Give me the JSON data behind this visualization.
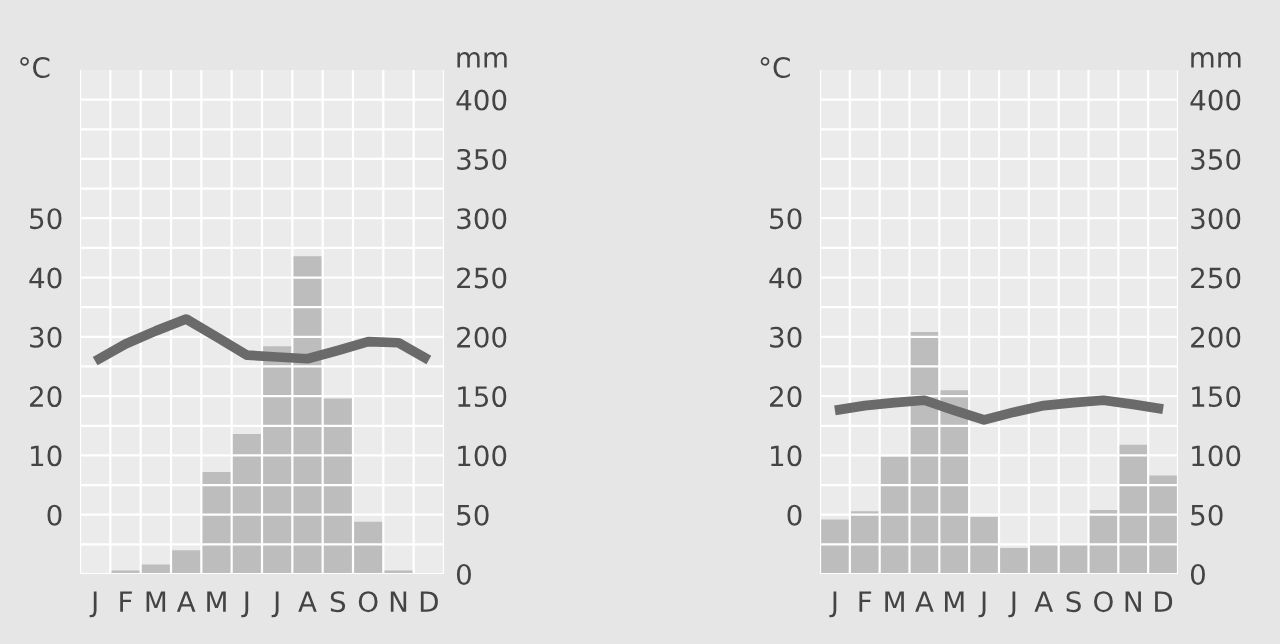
{
  "chart_data": [
    {
      "type": "bar",
      "ylabel": "°C",
      "y2label": "mm",
      "categories": [
        "J",
        "F",
        "M",
        "A",
        "M",
        "J",
        "J",
        "A",
        "S",
        "O",
        "N",
        "D"
      ],
      "grid": true,
      "series": [
        {
          "axis": "y2",
          "color": "#bdbdbd",
          "values": [
            0,
            3,
            8,
            20,
            86,
            118,
            192,
            268,
            148,
            44,
            3,
            0
          ]
        },
        {
          "type": "line",
          "axis": "y",
          "color": "#6a6a6a",
          "values": [
            25.9,
            28.8,
            31,
            33,
            30,
            26.9,
            26.6,
            26.3,
            27.7,
            29.2,
            29,
            26.1
          ]
        }
      ],
      "ylim": [
        -10,
        75
      ],
      "yticks": [
        0,
        10,
        20,
        30,
        40,
        50
      ],
      "y2lim": [
        0,
        425
      ],
      "y2ticks": [
        0,
        {
          "value": 25,
          "label": null
        },
        50,
        {
          "value": 75,
          "label": null
        },
        100,
        {
          "value": 125,
          "label": null
        },
        150,
        {
          "value": 175,
          "label": null
        },
        200,
        {
          "value": 225,
          "label": null
        },
        250,
        {
          "value": 275,
          "label": null
        },
        300,
        {
          "value": 325,
          "label": null
        },
        350,
        {
          "value": 375,
          "label": null
        },
        400
      ]
    },
    {
      "type": "bar",
      "ylabel": "°C",
      "y2label": "mm",
      "categories": [
        "J",
        "F",
        "M",
        "A",
        "M",
        "J",
        "J",
        "A",
        "S",
        "O",
        "N",
        "D"
      ],
      "grid": true,
      "series": [
        {
          "axis": "y2",
          "color": "#bdbdbd",
          "values": [
            46,
            53,
            99,
            204,
            155,
            48,
            22,
            25,
            25,
            54,
            109,
            83
          ]
        },
        {
          "type": "line",
          "axis": "y",
          "color": "#6a6a6a",
          "values": [
            17.6,
            18.4,
            18.9,
            19.3,
            17.6,
            16,
            17.3,
            18.4,
            18.9,
            19.3,
            18.6,
            17.8
          ]
        }
      ],
      "ylim": [
        -10,
        75
      ],
      "yticks": [
        0,
        10,
        20,
        30,
        40,
        50
      ],
      "y2lim": [
        0,
        425
      ],
      "y2ticks": [
        0,
        {
          "value": 25,
          "label": null
        },
        50,
        {
          "value": 75,
          "label": null
        },
        100,
        {
          "value": 125,
          "label": null
        },
        150,
        {
          "value": 175,
          "label": null
        },
        200,
        {
          "value": 225,
          "label": null
        },
        250,
        {
          "value": 275,
          "label": null
        },
        300,
        {
          "value": 325,
          "label": null
        },
        350,
        {
          "value": 375,
          "label": null
        },
        400
      ]
    }
  ]
}
